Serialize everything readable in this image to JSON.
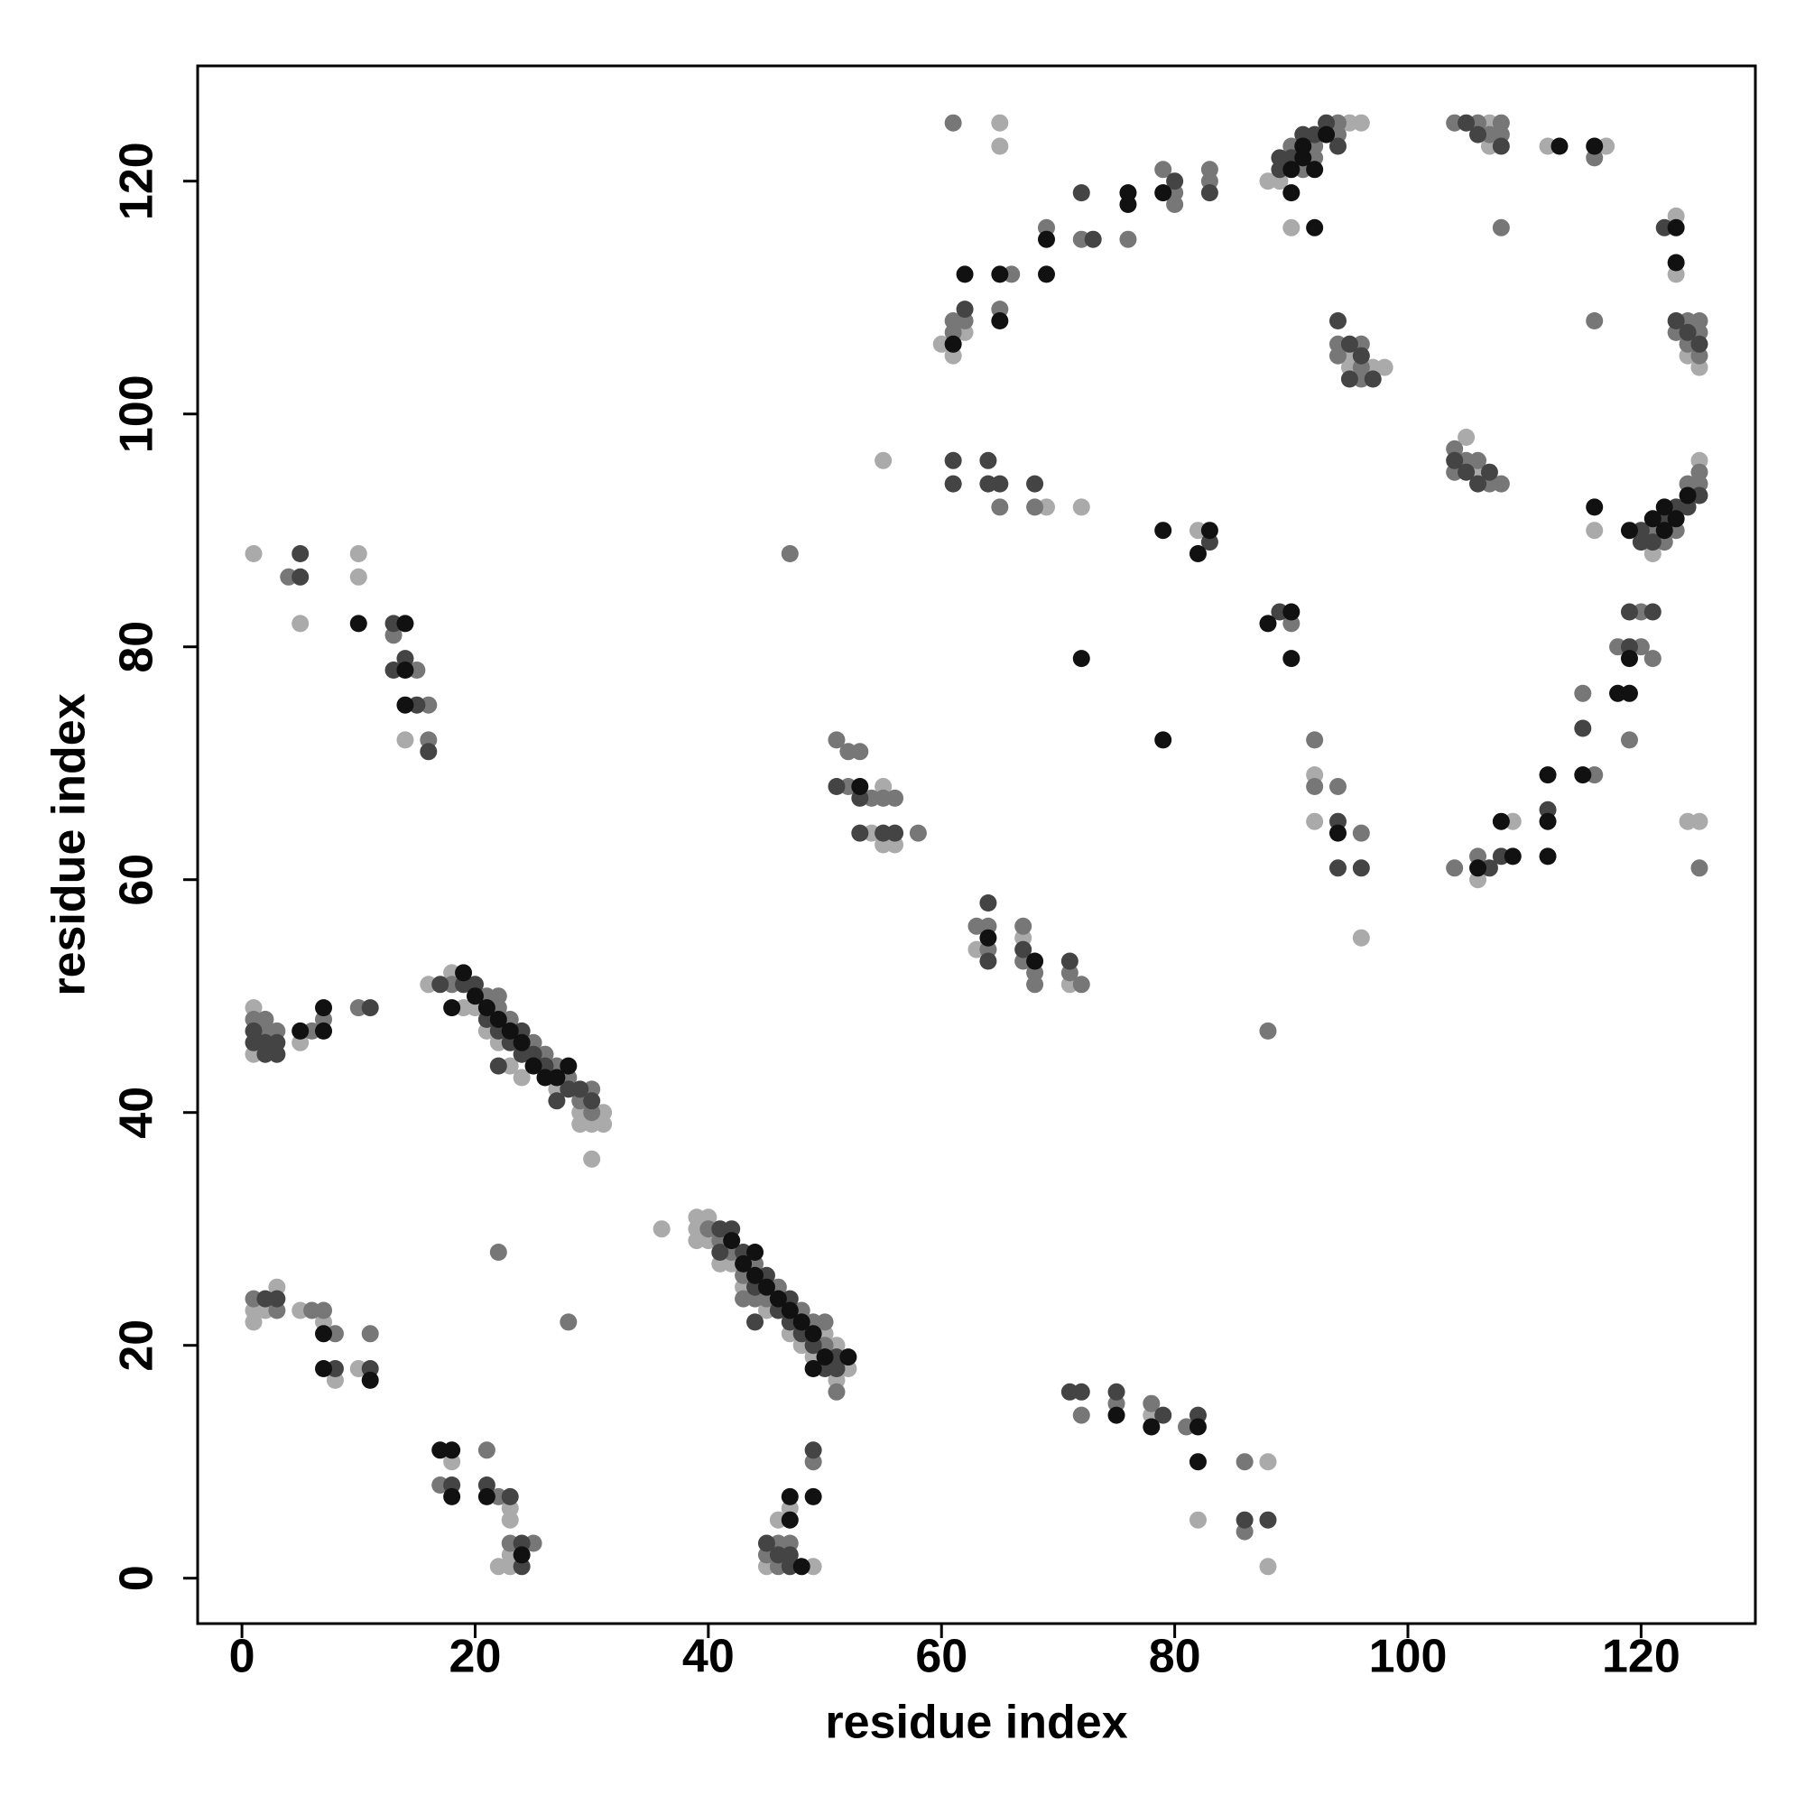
{
  "chart_data": {
    "type": "scatter",
    "xlabel": "residue index",
    "ylabel": "residue index",
    "xlim": [
      -3.8,
      129.8
    ],
    "ylim": [
      -3.9,
      129.9
    ],
    "xticks": [
      0,
      20,
      40,
      60,
      80,
      100,
      120
    ],
    "yticks": [
      0,
      20,
      40,
      60,
      80,
      100,
      120
    ],
    "grid": false,
    "series": [
      {
        "color": "#111111",
        "x": [
          19,
          20,
          21,
          22,
          23,
          24,
          25,
          26,
          27,
          28,
          18,
          42,
          43,
          44,
          44,
          45,
          46,
          47,
          48,
          49,
          50,
          49,
          52,
          7,
          7,
          5,
          7,
          7,
          11,
          17,
          18,
          18,
          21,
          24,
          47,
          47,
          49,
          48,
          10,
          14,
          14,
          14,
          53,
          64,
          68,
          72,
          79,
          79,
          82,
          83,
          88,
          90,
          90,
          82,
          82,
          75,
          78,
          62,
          65,
          65,
          69,
          69,
          76,
          76,
          79,
          90,
          90,
          91,
          92,
          91,
          92,
          93,
          113,
          116,
          123,
          123,
          116,
          119,
          121,
          122,
          122,
          123,
          124,
          119,
          118,
          119,
          112,
          112,
          112,
          115,
          106,
          108,
          109,
          61,
          94
        ],
        "y": [
          52,
          50,
          49,
          48,
          47,
          46,
          44,
          43,
          43,
          44,
          49,
          29,
          27,
          28,
          26,
          25,
          24,
          23,
          22,
          21,
          19,
          18,
          19,
          49,
          47,
          47,
          21,
          18,
          17,
          11,
          11,
          7,
          7,
          2,
          7,
          5,
          7,
          1,
          82,
          82,
          78,
          75,
          68,
          55,
          53,
          79,
          90,
          72,
          88,
          90,
          82,
          83,
          79,
          10,
          13,
          14,
          13,
          112,
          112,
          108,
          115,
          112,
          119,
          118,
          119,
          121,
          119,
          123,
          121,
          122,
          116,
          124,
          123,
          123,
          116,
          113,
          92,
          90,
          91,
          92,
          90,
          91,
          93,
          79,
          76,
          76,
          69,
          65,
          62,
          69,
          61,
          65,
          62,
          106,
          64
        ]
      },
      {
        "color": "#444444",
        "x": [
          17,
          19,
          20,
          21,
          22,
          22,
          23,
          24,
          24,
          25,
          26,
          27,
          28,
          29,
          30,
          41,
          41,
          42,
          43,
          44,
          44,
          45,
          46,
          47,
          47,
          48,
          49,
          50,
          51,
          51,
          1,
          1,
          2,
          2,
          3,
          3,
          11,
          2,
          3,
          8,
          11,
          18,
          21,
          23,
          24,
          24,
          45,
          46,
          47,
          47,
          49,
          5,
          5,
          13,
          13,
          14,
          15,
          16,
          53,
          51,
          53,
          55,
          56,
          64,
          64,
          67,
          71,
          61,
          64,
          65,
          68,
          72,
          73,
          62,
          80,
          83,
          89,
          89,
          90,
          91,
          92,
          93,
          94,
          94,
          95,
          96,
          95,
          97,
          104,
          105,
          106,
          107,
          105,
          106,
          108,
          122,
          123,
          124,
          125,
          125,
          124,
          123,
          122,
          121,
          120,
          120,
          119,
          121,
          115,
          119,
          112,
          107,
          108,
          94,
          94,
          96,
          71,
          75,
          82,
          86,
          88,
          89,
          83,
          61,
          64,
          72,
          79
        ],
        "y": [
          51,
          51,
          51,
          48,
          47,
          44,
          46,
          47,
          45,
          45,
          44,
          41,
          42,
          42,
          41,
          30,
          28,
          30,
          28,
          25,
          22,
          26,
          23,
          24,
          22,
          21,
          20,
          18,
          19,
          18,
          47,
          46,
          46,
          45,
          46,
          45,
          49,
          24,
          24,
          18,
          18,
          8,
          8,
          7,
          3,
          1,
          3,
          2,
          2,
          1,
          11,
          86,
          88,
          82,
          78,
          79,
          75,
          71,
          67,
          68,
          64,
          64,
          64,
          58,
          53,
          54,
          53,
          94,
          94,
          94,
          94,
          119,
          115,
          109,
          120,
          119,
          122,
          121,
          122,
          124,
          124,
          125,
          123,
          108,
          106,
          105,
          103,
          103,
          96,
          95,
          94,
          95,
          125,
          124,
          123,
          116,
          108,
          107,
          106,
          93,
          92,
          92,
          91,
          89,
          89,
          90,
          83,
          83,
          73,
          80,
          66,
          61,
          62,
          65,
          61,
          61,
          16,
          16,
          14,
          5,
          5,
          83,
          89,
          96,
          96,
          16,
          14
        ]
      },
      {
        "color": "#777777",
        "x": [
          18,
          21,
          22,
          22,
          23,
          25,
          26,
          27,
          28,
          29,
          30,
          30,
          40,
          41,
          42,
          43,
          43,
          44,
          44,
          45,
          46,
          48,
          49,
          50,
          50,
          51,
          1,
          2,
          2,
          3,
          6,
          7,
          10,
          1,
          3,
          7,
          6,
          8,
          11,
          21,
          17,
          22,
          23,
          25,
          22,
          28,
          45,
          46,
          46,
          47,
          49,
          47,
          4,
          13,
          15,
          16,
          16,
          51,
          52,
          53,
          52,
          54,
          55,
          56,
          58,
          63,
          64,
          64,
          67,
          67,
          68,
          68,
          71,
          72,
          61,
          61,
          62,
          61,
          65,
          66,
          69,
          72,
          76,
          79,
          80,
          80,
          83,
          83,
          90,
          91,
          92,
          92,
          94,
          94,
          94,
          94,
          96,
          96,
          96,
          104,
          104,
          105,
          106,
          107,
          108,
          104,
          106,
          107,
          108,
          108,
          108,
          116,
          116,
          123,
          124,
          124,
          125,
          125,
          125,
          124,
          125,
          125,
          123,
          122,
          121,
          118,
          120,
          120,
          121,
          119,
          115,
          116,
          106,
          104,
          125,
          92,
          94,
          96,
          92,
          90,
          72,
          75,
          78,
          81,
          86,
          86,
          88,
          65,
          68
        ],
        "y": [
          51,
          50,
          50,
          49,
          48,
          46,
          45,
          44,
          43,
          41,
          42,
          40,
          30,
          29,
          28,
          26,
          24,
          27,
          24,
          24,
          25,
          23,
          22,
          22,
          20,
          16,
          48,
          48,
          47,
          47,
          47,
          48,
          49,
          24,
          23,
          23,
          23,
          21,
          21,
          11,
          8,
          7,
          3,
          3,
          28,
          22,
          2,
          3,
          1,
          3,
          10,
          88,
          86,
          81,
          78,
          75,
          72,
          72,
          71,
          71,
          68,
          67,
          67,
          67,
          64,
          56,
          56,
          54,
          56,
          53,
          52,
          51,
          52,
          51,
          125,
          108,
          108,
          107,
          109,
          112,
          116,
          115,
          115,
          121,
          119,
          118,
          121,
          120,
          123,
          121,
          123,
          122,
          125,
          124,
          106,
          105,
          106,
          104,
          103,
          97,
          95,
          96,
          96,
          94,
          94,
          125,
          125,
          124,
          125,
          124,
          116,
          108,
          122,
          107,
          108,
          106,
          108,
          107,
          105,
          94,
          95,
          94,
          90,
          89,
          90,
          80,
          80,
          83,
          79,
          72,
          76,
          69,
          62,
          61,
          61,
          68,
          68,
          64,
          72,
          82,
          14,
          15,
          15,
          13,
          10,
          4,
          47,
          92,
          92
        ]
      },
      {
        "color": "#aaaaaa",
        "x": [
          18,
          19,
          20,
          21,
          22,
          23,
          24,
          27,
          29,
          29,
          30,
          30,
          31,
          31,
          16,
          39,
          39,
          39,
          40,
          40,
          41,
          42,
          43,
          45,
          47,
          48,
          49,
          50,
          51,
          51,
          52,
          36,
          1,
          1,
          5,
          1,
          1,
          2,
          3,
          5,
          7,
          8,
          10,
          18,
          22,
          23,
          23,
          23,
          23,
          45,
          46,
          47,
          49,
          1,
          5,
          10,
          10,
          14,
          55,
          55,
          56,
          54,
          67,
          71,
          55,
          65,
          65,
          69,
          72,
          60,
          61,
          62,
          88,
          89,
          90,
          95,
          96,
          95,
          95,
          97,
          98,
          105,
          106,
          107,
          107,
          112,
          117,
          123,
          123,
          124,
          125,
          125,
          121,
          116,
          106,
          109,
          124,
          125,
          92,
          92,
          96,
          82,
          82,
          88,
          88,
          78,
          63
        ],
        "y": [
          52,
          49,
          49,
          47,
          46,
          44,
          43,
          42,
          40,
          39,
          39,
          36,
          40,
          39,
          51,
          31,
          30,
          29,
          31,
          29,
          27,
          27,
          25,
          23,
          21,
          20,
          19,
          21,
          20,
          17,
          18,
          30,
          49,
          45,
          46,
          23,
          22,
          23,
          25,
          23,
          22,
          17,
          18,
          10,
          1,
          6,
          5,
          2,
          1,
          1,
          5,
          6,
          1,
          88,
          82,
          88,
          86,
          72,
          68,
          63,
          63,
          64,
          55,
          51,
          96,
          125,
          123,
          92,
          92,
          106,
          105,
          107,
          120,
          120,
          116,
          125,
          125,
          105,
          104,
          104,
          104,
          98,
          95,
          125,
          123,
          123,
          123,
          117,
          112,
          105,
          104,
          96,
          88,
          90,
          60,
          65,
          65,
          65,
          69,
          65,
          55,
          90,
          5,
          10,
          1,
          14,
          54
        ]
      }
    ]
  }
}
